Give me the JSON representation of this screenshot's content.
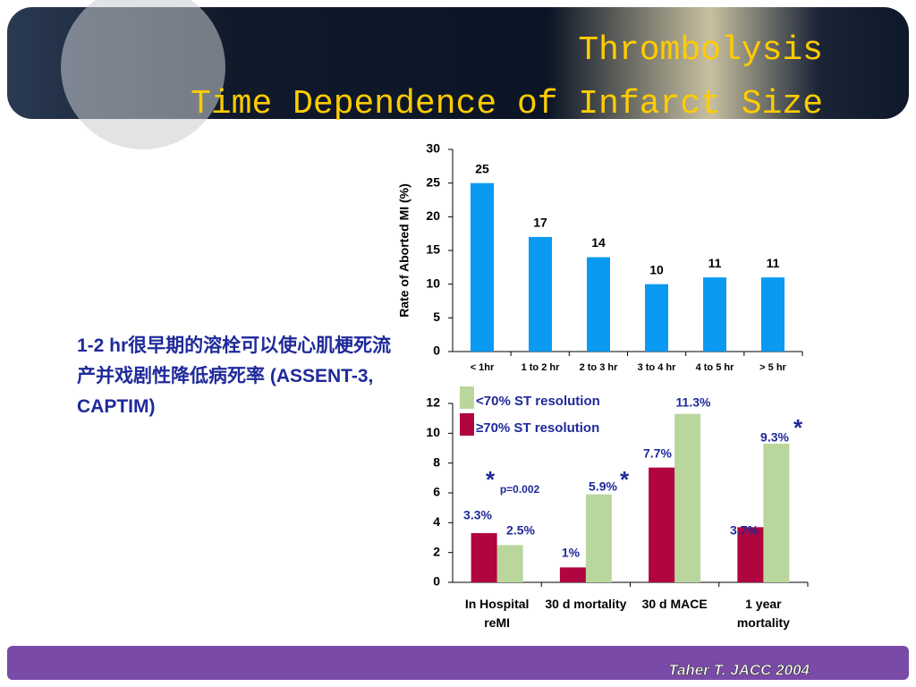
{
  "slide": {
    "title": [
      "Thrombolysis",
      "Time Dependence of Infarct Size"
    ],
    "body": "1-2 hr很早期的溶栓可以使心肌梗死流产并戏剧性降低病死率 (ASSENT-3, CAPTIM)",
    "citation": "Taher T. JACC 2004"
  },
  "chart_data": [
    {
      "type": "bar",
      "ylabel": "Rate of Aborted MI (%)",
      "categories": [
        "< 1hr",
        "1 to 2 hr",
        "2 to 3 hr",
        "3 to 4 hr",
        "4 to 5 hr",
        "> 5 hr"
      ],
      "values": [
        25,
        17,
        14,
        10,
        11,
        11
      ],
      "color": "#0a9af2",
      "ylim": [
        0,
        30
      ],
      "yticks": [
        0,
        5,
        10,
        15,
        20,
        25,
        30
      ]
    },
    {
      "type": "grouped-bar",
      "categories": [
        "In Hospital reMI",
        "30 d mortality",
        "30 d MACE",
        "1 year mortality"
      ],
      "series": [
        {
          "name": "<70% ST resolution",
          "color": "#b9d79c",
          "values": [
            2.5,
            5.9,
            11.3,
            9.3
          ],
          "value_labels": [
            "2.5%",
            "5.9%",
            "11.3%",
            "9.3%"
          ]
        },
        {
          "name": "≥70% ST resolution",
          "color": "#b0053f",
          "values": [
            3.3,
            1,
            7.7,
            3.7
          ],
          "value_labels": [
            "3.3%",
            "1%",
            "7.7%",
            "3.7%"
          ]
        }
      ],
      "ylim": [
        0,
        12
      ],
      "yticks": [
        0,
        2,
        4,
        6,
        8,
        10,
        12
      ],
      "annotations": [
        "*",
        "p=0.002",
        "*",
        "*"
      ]
    }
  ]
}
